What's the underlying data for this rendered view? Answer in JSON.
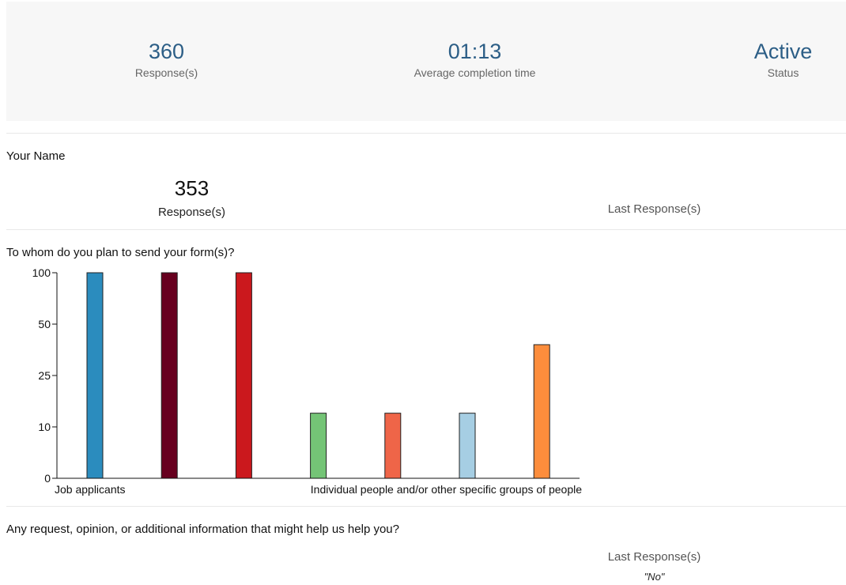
{
  "summary": {
    "responses": "360",
    "responses_label": "Response(s)",
    "avg_time": "01:13",
    "avg_time_label": "Average completion time",
    "status": "Active",
    "status_label": "Status"
  },
  "questions": [
    {
      "title": "Your Name",
      "response_count": "353",
      "response_label": "Response(s)",
      "last_label": "Last Response(s)"
    },
    {
      "title": "To whom do you plan to send your form(s)?"
    },
    {
      "title": "Any request, opinion, or additional information that might help us help you?",
      "last_label": "Last Response(s)",
      "last_value": "\"No\""
    }
  ],
  "chart_data": {
    "type": "bar",
    "title": "",
    "yticks": [
      0,
      10,
      25,
      50,
      100
    ],
    "xtick_labels": [
      "Job applicants",
      "Individual people and/or other specific groups of people"
    ],
    "values": [
      100,
      100,
      100,
      14,
      14,
      14,
      40
    ],
    "colors": [
      "#2b8cbe",
      "#67001f",
      "#cb181d",
      "#74c476",
      "#ef6548",
      "#a6cee3",
      "#fd8d3c"
    ]
  }
}
